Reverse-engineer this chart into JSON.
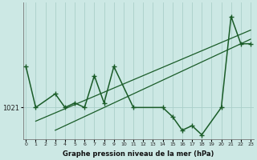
{
  "background_color": "#cce8e4",
  "grid_color": "#aacfc9",
  "line_color": "#1a5c28",
  "title": "Graphe pression niveau de la mer (hPa)",
  "ytick_val": 1021,
  "ylim": [
    1017.5,
    1032.5
  ],
  "xlim": [
    -0.3,
    23.3
  ],
  "xticks": [
    0,
    1,
    2,
    3,
    4,
    5,
    6,
    7,
    8,
    9,
    10,
    11,
    12,
    13,
    14,
    15,
    16,
    17,
    18,
    19,
    20,
    21,
    22,
    23
  ],
  "main_line": {
    "x": [
      0,
      1,
      3,
      4,
      5,
      6,
      7,
      8,
      9,
      11,
      14,
      15,
      16,
      17,
      18,
      20,
      21,
      22,
      23
    ],
    "y": [
      1025.5,
      1021,
      1022.5,
      1021,
      1021.5,
      1021,
      1024.5,
      1021.5,
      1025.5,
      1021,
      1021,
      1020,
      1018.5,
      1019,
      1018,
      1021,
      1031,
      1028,
      1028
    ]
  },
  "trend1": {
    "x": [
      1,
      23
    ],
    "y": [
      1019.5,
      1029.5
    ]
  },
  "trend2": {
    "x": [
      3,
      23
    ],
    "y": [
      1018.5,
      1028.5
    ]
  },
  "lw_main": 1.1,
  "lw_trend": 0.9,
  "markersize": 4
}
